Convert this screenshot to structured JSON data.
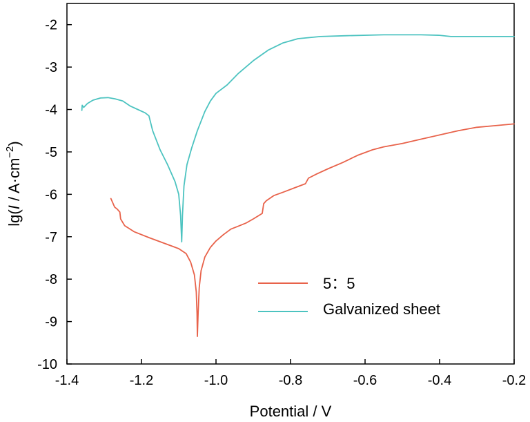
{
  "chart_data": {
    "type": "line",
    "title": "",
    "xlabel": "Potential / V",
    "ylabel_parts": {
      "prefix": "lg(",
      "italic": "I",
      "middle": " / A·cm",
      "superscript": "−2",
      "suffix": ")"
    },
    "xlim": [
      -1.4,
      -0.2
    ],
    "ylim": [
      -10,
      -1.5
    ],
    "x_ticks": [
      -1.4,
      -1.2,
      -1.0,
      -0.8,
      -0.6,
      -0.4,
      -0.2
    ],
    "x_tick_labels": [
      "-1.4",
      "-1.2",
      "-1.0",
      "-0.8",
      "-0.6",
      "-0.4",
      "-0.2"
    ],
    "y_ticks": [
      -10,
      -9,
      -8,
      -7,
      -6,
      -5,
      -4,
      -3,
      -2
    ],
    "y_tick_labels": [
      "-10",
      "-9",
      "-8",
      "-7",
      "-6",
      "-5",
      "-4",
      "-3",
      "-2"
    ],
    "grid": false,
    "legend_position": "lower-right",
    "series": [
      {
        "name": "5：5",
        "color": "#e8624a",
        "points": [
          [
            -1.282,
            -6.1
          ],
          [
            -1.272,
            -6.3
          ],
          [
            -1.265,
            -6.35
          ],
          [
            -1.258,
            -6.42
          ],
          [
            -1.256,
            -6.58
          ],
          [
            -1.245,
            -6.74
          ],
          [
            -1.22,
            -6.88
          ],
          [
            -1.18,
            -7.02
          ],
          [
            -1.14,
            -7.15
          ],
          [
            -1.1,
            -7.28
          ],
          [
            -1.08,
            -7.4
          ],
          [
            -1.068,
            -7.6
          ],
          [
            -1.058,
            -7.9
          ],
          [
            -1.053,
            -8.3
          ],
          [
            -1.051,
            -8.8
          ],
          [
            -1.05,
            -9.35
          ],
          [
            -1.048,
            -8.8
          ],
          [
            -1.045,
            -8.2
          ],
          [
            -1.04,
            -7.8
          ],
          [
            -1.03,
            -7.48
          ],
          [
            -1.015,
            -7.25
          ],
          [
            -1.0,
            -7.1
          ],
          [
            -0.98,
            -6.95
          ],
          [
            -0.96,
            -6.82
          ],
          [
            -0.94,
            -6.75
          ],
          [
            -0.92,
            -6.68
          ],
          [
            -0.9,
            -6.58
          ],
          [
            -0.876,
            -6.45
          ],
          [
            -0.872,
            -6.22
          ],
          [
            -0.865,
            -6.15
          ],
          [
            -0.845,
            -6.03
          ],
          [
            -0.82,
            -5.95
          ],
          [
            -0.79,
            -5.85
          ],
          [
            -0.76,
            -5.75
          ],
          [
            -0.752,
            -5.62
          ],
          [
            -0.73,
            -5.52
          ],
          [
            -0.7,
            -5.4
          ],
          [
            -0.66,
            -5.25
          ],
          [
            -0.62,
            -5.08
          ],
          [
            -0.58,
            -4.95
          ],
          [
            -0.55,
            -4.88
          ],
          [
            -0.5,
            -4.8
          ],
          [
            -0.45,
            -4.7
          ],
          [
            -0.4,
            -4.6
          ],
          [
            -0.35,
            -4.5
          ],
          [
            -0.3,
            -4.42
          ],
          [
            -0.25,
            -4.38
          ],
          [
            -0.2,
            -4.34
          ]
        ]
      },
      {
        "name": "Galvanized sheet",
        "color": "#4cc3c0",
        "points": [
          [
            -1.36,
            -4.02
          ],
          [
            -1.359,
            -3.9
          ],
          [
            -1.355,
            -3.95
          ],
          [
            -1.345,
            -3.86
          ],
          [
            -1.33,
            -3.78
          ],
          [
            -1.31,
            -3.73
          ],
          [
            -1.29,
            -3.72
          ],
          [
            -1.27,
            -3.75
          ],
          [
            -1.25,
            -3.8
          ],
          [
            -1.23,
            -3.92
          ],
          [
            -1.21,
            -4.0
          ],
          [
            -1.19,
            -4.08
          ],
          [
            -1.18,
            -4.15
          ],
          [
            -1.17,
            -4.5
          ],
          [
            -1.15,
            -4.95
          ],
          [
            -1.13,
            -5.3
          ],
          [
            -1.11,
            -5.7
          ],
          [
            -1.1,
            -6.0
          ],
          [
            -1.095,
            -6.5
          ],
          [
            -1.092,
            -7.12
          ],
          [
            -1.09,
            -6.5
          ],
          [
            -1.086,
            -5.8
          ],
          [
            -1.078,
            -5.3
          ],
          [
            -1.065,
            -4.9
          ],
          [
            -1.05,
            -4.5
          ],
          [
            -1.03,
            -4.05
          ],
          [
            -1.015,
            -3.8
          ],
          [
            -1.0,
            -3.62
          ],
          [
            -0.97,
            -3.42
          ],
          [
            -0.94,
            -3.15
          ],
          [
            -0.9,
            -2.85
          ],
          [
            -0.86,
            -2.6
          ],
          [
            -0.82,
            -2.43
          ],
          [
            -0.78,
            -2.33
          ],
          [
            -0.72,
            -2.28
          ],
          [
            -0.65,
            -2.26
          ],
          [
            -0.55,
            -2.24
          ],
          [
            -0.45,
            -2.24
          ],
          [
            -0.4,
            -2.25
          ],
          [
            -0.37,
            -2.28
          ],
          [
            -0.3,
            -2.28
          ],
          [
            -0.2,
            -2.28
          ]
        ]
      }
    ]
  }
}
